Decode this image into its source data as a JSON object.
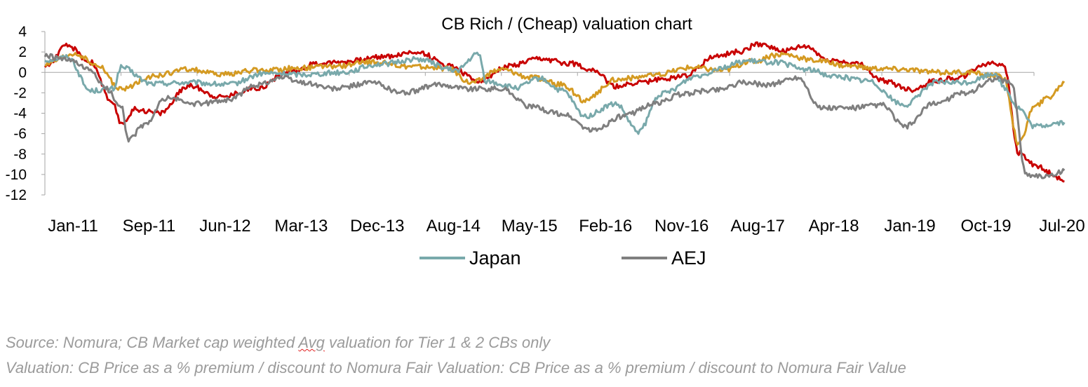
{
  "chart_data": {
    "type": "line",
    "title": "CB Rich / (Cheap) valuation chart",
    "ylim": [
      -12,
      4
    ],
    "yticks": [
      4,
      2,
      0,
      -2,
      -4,
      -6,
      -8,
      -10,
      -12
    ],
    "xtick_labels": [
      "Jan-11",
      "Sep-11",
      "Jun-12",
      "Mar-13",
      "Dec-13",
      "Aug-14",
      "May-15",
      "Feb-16",
      "Nov-16",
      "Aug-17",
      "Apr-18",
      "Jan-19",
      "Oct-19",
      "Jul-20"
    ],
    "grid": false,
    "legend_position": "bottom",
    "series": [
      {
        "name": "Japan",
        "color": "#79a9ab",
        "in_legend": true,
        "values": [
          [
            0.0,
            1.2
          ],
          [
            0.3,
            1.5
          ],
          [
            0.6,
            -1.8
          ],
          [
            0.9,
            -1.6
          ],
          [
            1.0,
            0.5
          ],
          [
            1.4,
            -1.1
          ],
          [
            1.9,
            -1.0
          ],
          [
            2.4,
            -1.2
          ],
          [
            2.9,
            -0.1
          ],
          [
            3.4,
            -0.2
          ],
          [
            3.9,
            0.0
          ],
          [
            4.4,
            0.8
          ],
          [
            4.9,
            1.3
          ],
          [
            5.4,
            0.2
          ],
          [
            5.7,
            1.8
          ],
          [
            5.8,
            -0.9
          ],
          [
            6.2,
            -1.5
          ],
          [
            6.5,
            -0.6
          ],
          [
            6.8,
            -1.8
          ],
          [
            7.1,
            -4.3
          ],
          [
            7.5,
            -3.1
          ],
          [
            7.8,
            -5.8
          ],
          [
            8.1,
            -2.1
          ],
          [
            8.6,
            -0.3
          ],
          [
            8.9,
            0.5
          ],
          [
            9.2,
            1.1
          ],
          [
            9.6,
            1.0
          ],
          [
            10.0,
            0.3
          ],
          [
            10.4,
            -0.4
          ],
          [
            10.8,
            -0.8
          ],
          [
            11.3,
            -3.2
          ],
          [
            11.7,
            -1.0
          ],
          [
            12.1,
            -1.0
          ],
          [
            12.5,
            -0.1
          ],
          [
            12.6,
            -1.5
          ],
          [
            12.8,
            -3.5
          ],
          [
            13.0,
            -5.3
          ],
          [
            13.4,
            -4.9
          ]
        ]
      },
      {
        "name": "AEJ",
        "color": "#7f7f7f",
        "in_legend": true,
        "values": [
          [
            0.0,
            1.6
          ],
          [
            0.3,
            1.2
          ],
          [
            0.6,
            0.2
          ],
          [
            0.8,
            -1.6
          ],
          [
            1.0,
            -3.2
          ],
          [
            1.1,
            -6.6
          ],
          [
            1.3,
            -5.2
          ],
          [
            1.6,
            -2.5
          ],
          [
            2.0,
            -3.1
          ],
          [
            2.4,
            -2.7
          ],
          [
            2.8,
            -1.2
          ],
          [
            3.1,
            -0.5
          ],
          [
            3.4,
            -1.0
          ],
          [
            3.8,
            -1.6
          ],
          [
            4.3,
            -1.0
          ],
          [
            4.7,
            -2.0
          ],
          [
            5.2,
            -1.2
          ],
          [
            5.6,
            -1.6
          ],
          [
            6.0,
            -1.6
          ],
          [
            6.4,
            -3.4
          ],
          [
            6.8,
            -4.1
          ],
          [
            7.2,
            -5.7
          ],
          [
            7.6,
            -4.3
          ],
          [
            8.0,
            -3.1
          ],
          [
            8.4,
            -2.1
          ],
          [
            8.8,
            -1.7
          ],
          [
            9.2,
            -1.0
          ],
          [
            9.5,
            -1.2
          ],
          [
            9.9,
            -0.5
          ],
          [
            10.2,
            -3.5
          ],
          [
            10.6,
            -3.5
          ],
          [
            11.0,
            -3.2
          ],
          [
            11.3,
            -5.3
          ],
          [
            11.7,
            -3.0
          ],
          [
            12.1,
            -2.0
          ],
          [
            12.5,
            -0.6
          ],
          [
            12.7,
            -1.0
          ],
          [
            12.9,
            -10.0
          ],
          [
            13.2,
            -10.2
          ],
          [
            13.4,
            -9.6
          ]
        ]
      },
      {
        "name": "",
        "color": "#c80000",
        "in_legend": false,
        "values": [
          [
            0.0,
            0.6
          ],
          [
            0.3,
            2.6
          ],
          [
            0.6,
            1.0
          ],
          [
            0.9,
            -3.2
          ],
          [
            1.0,
            -5.0
          ],
          [
            1.2,
            -3.6
          ],
          [
            1.5,
            -4.0
          ],
          [
            1.9,
            -1.3
          ],
          [
            2.3,
            -2.4
          ],
          [
            2.8,
            -1.5
          ],
          [
            3.2,
            0.0
          ],
          [
            3.6,
            0.9
          ],
          [
            4.0,
            1.1
          ],
          [
            4.5,
            1.6
          ],
          [
            4.9,
            2.0
          ],
          [
            5.3,
            0.7
          ],
          [
            5.7,
            -0.8
          ],
          [
            6.1,
            0.6
          ],
          [
            6.5,
            1.3
          ],
          [
            6.9,
            0.9
          ],
          [
            7.2,
            0.3
          ],
          [
            7.5,
            -1.4
          ],
          [
            7.8,
            -1.0
          ],
          [
            8.1,
            -0.7
          ],
          [
            8.4,
            -0.3
          ],
          [
            8.8,
            1.5
          ],
          [
            9.1,
            2.0
          ],
          [
            9.4,
            2.8
          ],
          [
            9.7,
            2.1
          ],
          [
            10.0,
            2.5
          ],
          [
            10.3,
            1.2
          ],
          [
            10.7,
            0.8
          ],
          [
            11.0,
            -0.8
          ],
          [
            11.4,
            -1.7
          ],
          [
            11.7,
            -0.8
          ],
          [
            12.0,
            -0.5
          ],
          [
            12.4,
            0.9
          ],
          [
            12.6,
            0.8
          ],
          [
            12.8,
            -7.9
          ],
          [
            13.0,
            -9.0
          ],
          [
            13.2,
            -9.8
          ],
          [
            13.4,
            -10.7
          ]
        ]
      },
      {
        "name": "",
        "color": "#d49a22",
        "in_legend": false,
        "values": [
          [
            0.0,
            0.8
          ],
          [
            0.4,
            1.8
          ],
          [
            0.7,
            0.6
          ],
          [
            1.0,
            -1.7
          ],
          [
            1.4,
            -0.4
          ],
          [
            1.9,
            0.3
          ],
          [
            2.3,
            -0.2
          ],
          [
            2.8,
            0.2
          ],
          [
            3.3,
            0.4
          ],
          [
            3.8,
            0.6
          ],
          [
            4.3,
            1.0
          ],
          [
            4.8,
            0.6
          ],
          [
            5.3,
            0.4
          ],
          [
            5.6,
            -1.0
          ],
          [
            6.0,
            0.3
          ],
          [
            6.4,
            -0.5
          ],
          [
            6.8,
            -1.2
          ],
          [
            7.1,
            -2.8
          ],
          [
            7.5,
            -0.7
          ],
          [
            8.0,
            -0.3
          ],
          [
            8.5,
            0.5
          ],
          [
            8.9,
            0.2
          ],
          [
            9.3,
            1.1
          ],
          [
            9.7,
            1.8
          ],
          [
            10.1,
            1.2
          ],
          [
            10.5,
            0.7
          ],
          [
            10.9,
            0.4
          ],
          [
            11.3,
            0.3
          ],
          [
            11.7,
            0.0
          ],
          [
            12.1,
            0.0
          ],
          [
            12.5,
            -0.3
          ],
          [
            12.6,
            -0.6
          ],
          [
            12.8,
            -7.0
          ],
          [
            13.0,
            -3.4
          ],
          [
            13.2,
            -2.4
          ],
          [
            13.4,
            -1.0
          ]
        ]
      }
    ]
  },
  "footnotes": {
    "line1_pre": "Source: Nomura; CB Market cap weighted ",
    "line1_misspelled": "Avg",
    "line1_post": " valuation for Tier 1 & 2 CBs only",
    "line2": "Valuation: CB Price as a % premium / discount to Nomura Fair Valuation: CB Price as a % premium / discount to Nomura Fair Value"
  }
}
